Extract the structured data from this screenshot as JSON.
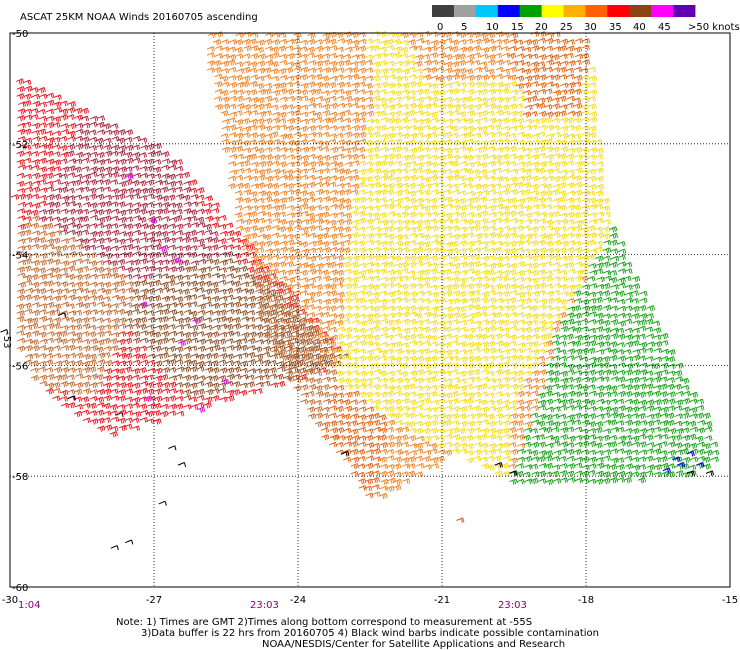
{
  "title": "ASCAT 25KM NOAA Winds 20160705 ascending",
  "colorbar": {
    "labels": [
      "0",
      "5",
      "10",
      "15",
      "20",
      "25",
      "30",
      "35",
      "40",
      "45",
      ">50 knots"
    ],
    "colors": [
      "#404040",
      "#a0a0a0",
      "#00c8ff",
      "#0000ff",
      "#00a000",
      "#ffff00",
      "#ffb000",
      "#ff6000",
      "#ff0000",
      "#8b4513",
      "#ff00ff",
      "#6000b0"
    ]
  },
  "axes": {
    "lon_labels": [
      "-30",
      "-27",
      "-24",
      "-21",
      "-18",
      "-15"
    ],
    "lat_labels": [
      "-50",
      "-52",
      "-54",
      "-56",
      "-58",
      "-60"
    ],
    "lat_minor_label": "-53"
  },
  "time_labels": [
    "1:04",
    "23:03",
    "23:03"
  ],
  "notes": {
    "line1": "Note: 1) Times are GMT 2)Times along bottom correspond to measurement at -55S",
    "line2": "3)Data buffer is 22 hrs from 20160705 4) Black wind barbs indicate possible contamination",
    "line3": "NOAA/NESDIS/Center for Satellite Applications and Research"
  },
  "map": {
    "lon_range": [
      -30,
      -15
    ],
    "lat_range": [
      -60,
      -50
    ],
    "grid": true
  },
  "wind_swaths": [
    {
      "name": "west",
      "outline": [
        [
          -30.6,
          -50.5
        ],
        [
          -26.8,
          -52.1
        ],
        [
          -23.0,
          -55.9
        ],
        [
          -24.2,
          -56.3
        ],
        [
          -26.2,
          -56.8
        ],
        [
          -28.0,
          -57.3
        ],
        [
          -29.5,
          -56.4
        ],
        [
          -30.6,
          -54.4
        ]
      ],
      "zones": [
        {
          "c": "red",
          "p": [
            [
              -30.6,
              -50.5
            ],
            [
              -28.5,
              -51.4
            ],
            [
              -29.5,
              -53.3
            ],
            [
              -30.6,
              -54.0
            ]
          ]
        },
        {
          "c": "brownred",
          "p": [
            [
              -28.5,
              -51.4
            ],
            [
              -26.8,
              -52.1
            ],
            [
              -25.5,
              -54.0
            ],
            [
              -27.5,
              -54.5
            ],
            [
              -29.5,
              -53.3
            ]
          ]
        },
        {
          "c": "brown",
          "p": [
            [
              -27.5,
              -54.5
            ],
            [
              -25.5,
              -54.0
            ],
            [
              -23.0,
              -55.9
            ],
            [
              -24.4,
              -56.3
            ],
            [
              -26.4,
              -56.6
            ],
            [
              -27.7,
              -55.3
            ]
          ]
        },
        {
          "c": "tan",
          "p": [
            [
              -30.6,
              -54.0
            ],
            [
              -29.5,
              -53.3
            ],
            [
              -27.5,
              -54.5
            ],
            [
              -27.7,
              -55.3
            ],
            [
              -28.3,
              -56.6
            ],
            [
              -29.5,
              -56.4
            ],
            [
              -30.6,
              -54.4
            ]
          ]
        },
        {
          "c": "red",
          "p": [
            [
              -28.3,
              -56.6
            ],
            [
              -27.7,
              -55.3
            ],
            [
              -26.4,
              -56.6
            ],
            [
              -26.2,
              -56.8
            ],
            [
              -28.0,
              -57.3
            ]
          ]
        }
      ],
      "magenta": [
        [
          -27.6,
          -52.6
        ],
        [
          -27.1,
          -53.4
        ],
        [
          -26.6,
          -54.1
        ],
        [
          -27.3,
          -54.9
        ],
        [
          -26.5,
          -55.6
        ],
        [
          -27.2,
          -56.6
        ],
        [
          -26.1,
          -56.8
        ],
        [
          -25.6,
          -56.3
        ],
        [
          -26.9,
          -53.9
        ],
        [
          -26.2,
          -55.2
        ]
      ]
    },
    {
      "name": "east",
      "outline": [
        [
          -25.9,
          -49.9
        ],
        [
          -19.8,
          -49.9
        ],
        [
          -18.0,
          -50.1
        ],
        [
          -17.7,
          -52.8
        ],
        [
          -17.5,
          -53.5
        ],
        [
          -16.6,
          -55.2
        ],
        [
          -15.6,
          -56.8
        ],
        [
          -15.3,
          -57.7
        ],
        [
          -15.9,
          -58.0
        ],
        [
          -18.4,
          -58.2
        ],
        [
          -19.7,
          -58.1
        ],
        [
          -20.8,
          -57.6
        ],
        [
          -22.5,
          -58.5
        ],
        [
          -23.6,
          -57.2
        ],
        [
          -24.7,
          -55.6
        ],
        [
          -25.4,
          -53.2
        ],
        [
          -25.9,
          -50.7
        ]
      ],
      "zones": [
        {
          "c": "orange",
          "p": [
            [
              -25.9,
              -49.9
            ],
            [
              -22.7,
              -49.9
            ],
            [
              -22.5,
              -51.2
            ],
            [
              -23.0,
              -53.5
            ],
            [
              -23.6,
              -57.2
            ],
            [
              -24.7,
              -55.6
            ],
            [
              -25.4,
              -53.2
            ],
            [
              -25.9,
              -50.7
            ]
          ]
        },
        {
          "c": "tan",
          "p": [
            [
              -25.1,
              -54.2
            ],
            [
              -24.1,
              -54.7
            ],
            [
              -23.3,
              -56.2
            ],
            [
              -23.6,
              -57.2
            ],
            [
              -24.7,
              -55.6
            ]
          ]
        },
        {
          "c": "darkorange",
          "p": [
            [
              -23.6,
              -57.2
            ],
            [
              -23.3,
              -56.2
            ],
            [
              -22.2,
              -57.0
            ],
            [
              -22.5,
              -58.5
            ]
          ]
        },
        {
          "c": "yellow",
          "p": [
            [
              -22.7,
              -49.9
            ],
            [
              -19.8,
              -49.9
            ],
            [
              -18.0,
              -50.1
            ],
            [
              -17.7,
              -52.8
            ],
            [
              -17.5,
              -53.5
            ],
            [
              -18.6,
              -55.1
            ],
            [
              -19.6,
              -56.7
            ],
            [
              -19.7,
              -58.1
            ],
            [
              -20.8,
              -57.6
            ],
            [
              -22.2,
              -57.0
            ],
            [
              -23.3,
              -56.2
            ],
            [
              -23.0,
              -53.5
            ],
            [
              -22.5,
              -51.2
            ]
          ]
        },
        {
          "c": "orange",
          "p": [
            [
              -22.0,
              -49.9
            ],
            [
              -19.8,
              -49.9
            ],
            [
              -18.3,
              -50.1
            ],
            [
              -19.6,
              -50.9
            ],
            [
              -21.4,
              -50.9
            ]
          ]
        },
        {
          "c": "darkorange",
          "p": [
            [
              -19.8,
              -49.9
            ],
            [
              -18.0,
              -50.1
            ],
            [
              -18.2,
              -51.5
            ],
            [
              -19.3,
              -51.5
            ]
          ]
        },
        {
          "c": "green",
          "p": [
            [
              -17.5,
              -53.5
            ],
            [
              -16.6,
              -55.2
            ],
            [
              -15.6,
              -56.8
            ],
            [
              -15.3,
              -57.7
            ],
            [
              -15.9,
              -58.0
            ],
            [
              -18.4,
              -58.2
            ],
            [
              -19.7,
              -58.1
            ],
            [
              -19.4,
              -57.4
            ],
            [
              -19.0,
              -56.5
            ],
            [
              -18.7,
              -55.4
            ],
            [
              -18.4,
              -54.9
            ]
          ]
        }
      ],
      "blue": [
        [
          -15.7,
          -57.8
        ],
        [
          -16.1,
          -57.8
        ],
        [
          -16.4,
          -57.9
        ],
        [
          -16.2,
          -57.7
        ],
        [
          -15.9,
          -57.6
        ]
      ],
      "black": [
        [
          -15.9,
          -57.95
        ],
        [
          -15.5,
          -57.95
        ],
        [
          -19.9,
          -57.8
        ],
        [
          -19.6,
          -57.95
        ],
        [
          -23.1,
          -57.6
        ]
      ]
    }
  ],
  "black_specks": [
    [
      -26.5,
      -57.8
    ],
    [
      -26.9,
      -58.5
    ],
    [
      -27.6,
      -59.2
    ],
    [
      -27.9,
      -59.3
    ],
    [
      -26.7,
      -57.5
    ],
    [
      -28.8,
      -56.6
    ],
    [
      -29.0,
      -55.1
    ],
    [
      -30.2,
      -55.4
    ],
    [
      -27.8,
      -56.9
    ]
  ],
  "stray_barbs": [
    {
      "pos": [
        -20.7,
        -58.8
      ],
      "c": "darkorange"
    },
    {
      "pos": [
        -23.3,
        -57.3
      ],
      "c": "darkorange"
    }
  ],
  "palette": {
    "red": "#e8101c",
    "brownred": "#a4203c",
    "brown": "#8a4a20",
    "tan": "#c0682e",
    "orange": "#f08020",
    "darkorange": "#e05e0a",
    "yellow": "#f5dc10",
    "green": "#11a012",
    "magenta": "#e01ae0",
    "blue": "#0000e0",
    "time_label": "#800080"
  }
}
